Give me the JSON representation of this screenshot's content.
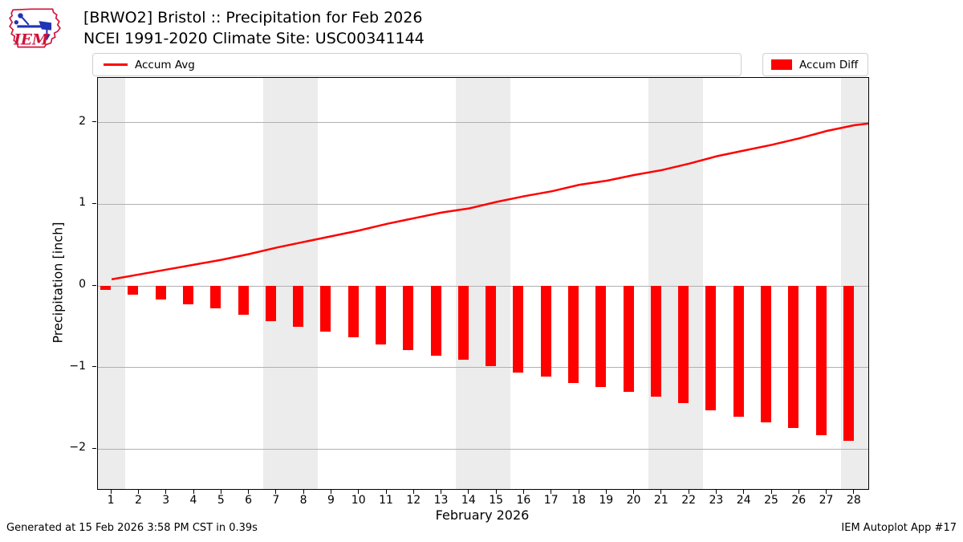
{
  "header": {
    "title_line1": "[BRWO2] Bristol :: Precipitation for Feb 2026",
    "title_line2": "NCEI 1991-2020 Climate Site: USC00341144",
    "logo_text": "IEM"
  },
  "legend": {
    "avg_label": "Accum Avg",
    "diff_label": "Accum Diff"
  },
  "footer": {
    "generated": "Generated at 15 Feb 2026 3:58 PM CST in 0.39s",
    "app": "IEM Autoplot App #17"
  },
  "colors": {
    "accent_red": "#ff0000",
    "grid": "#b0b0b0",
    "band": "#ececec",
    "logo_red": "#d01238",
    "logo_blue": "#1f35b4"
  },
  "chart_data": {
    "type": "line+bar",
    "title": "[BRWO2] Bristol :: Precipitation for Feb 2026",
    "subtitle": "NCEI 1991-2020 Climate Site: USC00341144",
    "xlabel": "February 2026",
    "ylabel": "Precipitation [inch]",
    "grid": true,
    "legend_position": "top",
    "xlim": [
      0.5,
      28.5
    ],
    "ylim": [
      -2.49,
      2.55
    ],
    "yticks": [
      -2,
      -1,
      0,
      1,
      2
    ],
    "ytick_labels": [
      "−2",
      "−1",
      "0",
      "1",
      "2"
    ],
    "days": [
      1,
      2,
      3,
      4,
      5,
      6,
      7,
      8,
      9,
      10,
      11,
      12,
      13,
      14,
      15,
      16,
      17,
      18,
      19,
      20,
      21,
      22,
      23,
      24,
      25,
      26,
      27,
      28
    ],
    "weekend_bands_days": [
      [
        0.5,
        1.5
      ],
      [
        6.5,
        8.5
      ],
      [
        13.5,
        15.5
      ],
      [
        20.5,
        22.5
      ],
      [
        27.5,
        28.5
      ]
    ],
    "series": [
      {
        "name": "Accum Avg",
        "type": "line",
        "color": "#ff0000",
        "values": [
          0.08,
          0.14,
          0.2,
          0.26,
          0.32,
          0.39,
          0.47,
          0.54,
          0.61,
          0.68,
          0.76,
          0.83,
          0.9,
          0.95,
          1.03,
          1.1,
          1.16,
          1.24,
          1.29,
          1.36,
          1.42,
          1.5,
          1.59,
          1.66,
          1.73,
          1.81,
          1.9,
          1.97
        ],
        "edge_value": 1.99
      },
      {
        "name": "Accum Diff",
        "type": "bar",
        "color": "#ff0000",
        "values": [
          -0.05,
          -0.11,
          -0.17,
          -0.23,
          -0.28,
          -0.35,
          -0.43,
          -0.5,
          -0.56,
          -0.63,
          -0.72,
          -0.79,
          -0.86,
          -0.91,
          -0.98,
          -1.06,
          -1.11,
          -1.19,
          -1.24,
          -1.3,
          -1.36,
          -1.44,
          -1.53,
          -1.6,
          -1.67,
          -1.74,
          -1.83,
          -1.9
        ]
      }
    ]
  }
}
